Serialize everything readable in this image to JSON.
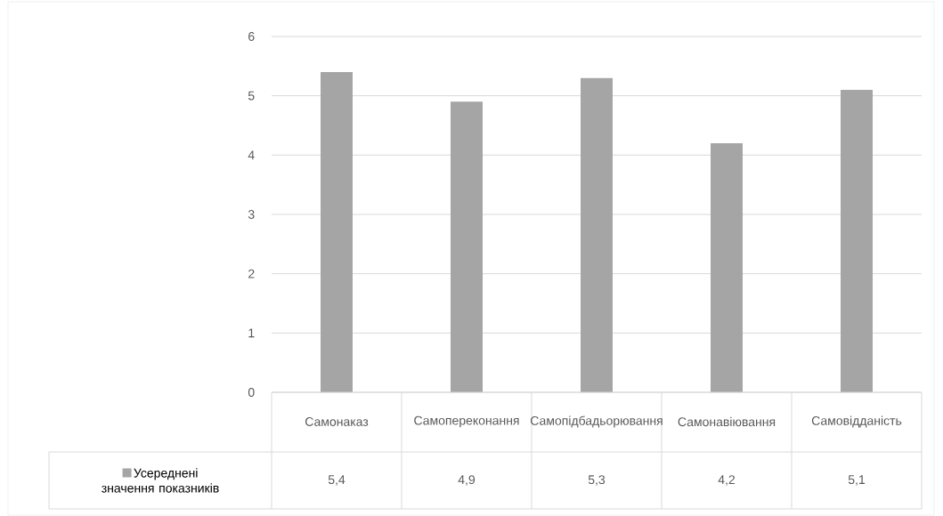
{
  "chart_data": {
    "type": "bar",
    "categories": [
      "Самонаказ",
      "Самопереконання",
      "Самопідбадьорювання",
      "Самонавіювання",
      "Самовідданість"
    ],
    "series": [
      {
        "name": "Усереднені значення показників",
        "color": "#a5a5a5",
        "values": [
          5.4,
          4.9,
          5.3,
          4.2,
          5.1
        ],
        "value_labels": [
          "5,4",
          "4,9",
          "5,3",
          "4,2",
          "5,1"
        ]
      }
    ],
    "ylim": [
      0,
      6
    ],
    "yticks": [
      0,
      1,
      2,
      3,
      4,
      5,
      6
    ],
    "grid": "y",
    "legend": "bottom"
  }
}
